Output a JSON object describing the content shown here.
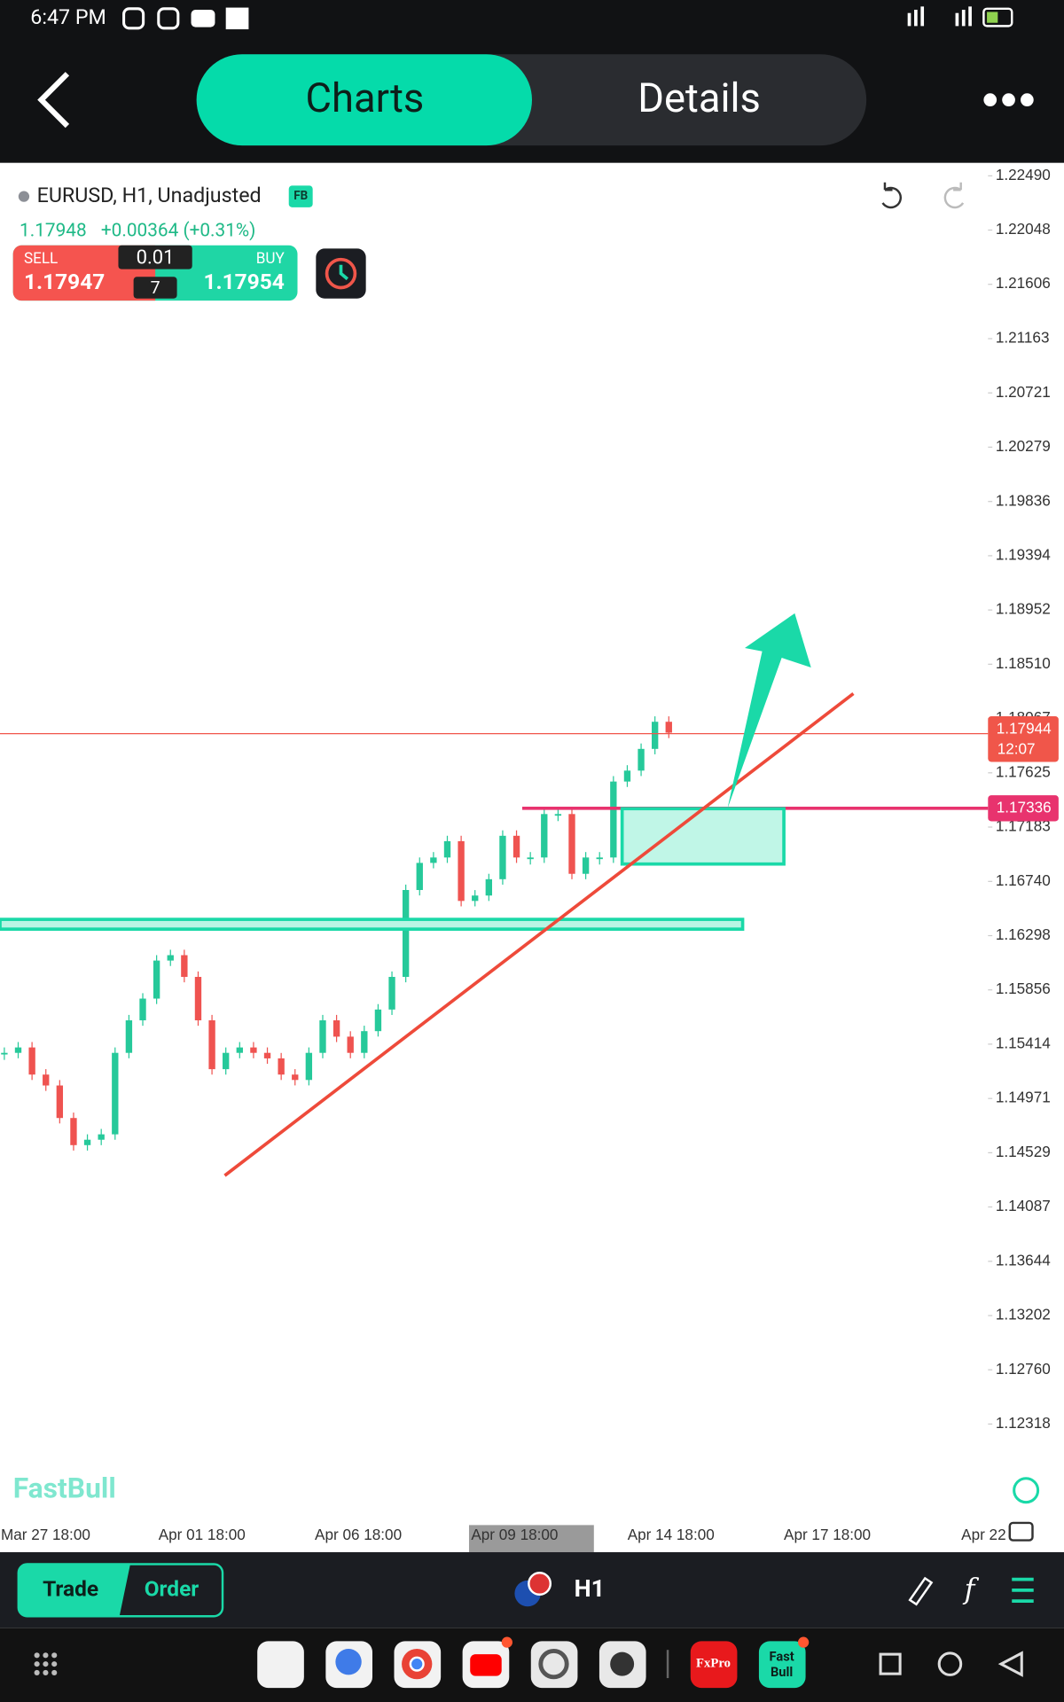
{
  "status_bar": {
    "time": "6:47 PM"
  },
  "header": {
    "tabs": [
      "Charts",
      "Details"
    ]
  },
  "instrument": {
    "name": "EURUSD, H1, Unadjusted",
    "badge": "FB",
    "last": "1.17948",
    "change": "+0.00364 (+0.31%)"
  },
  "trade_panel": {
    "sell_label": "SELL",
    "sell_price": "1.17947",
    "lot": "0.01",
    "spread": "7",
    "buy_label": "BUY",
    "buy_price": "1.17954"
  },
  "chart_data": {
    "type": "candlestick",
    "values": [
      1.15343,
      1.15387,
      1.15166,
      1.15077,
      1.14812,
      1.14591,
      1.14635,
      1.14679,
      1.15343,
      1.15608,
      1.15785,
      1.16095,
      1.16139,
      1.15962,
      1.15608,
      1.1521,
      1.15343,
      1.15387,
      1.15343,
      1.15298,
      1.15166,
      1.15122,
      1.15343,
      1.15608,
      1.15475,
      1.15343,
      1.1552,
      1.15696,
      1.15962,
      1.1667,
      1.16891,
      1.16935,
      1.17068,
      1.16581,
      1.16625,
      1.16758,
      1.17112,
      1.16935,
      1.16935,
      1.17289,
      1.17289,
      1.16802,
      1.16935,
      1.16935,
      1.17554,
      1.17643,
      1.1782,
      1.18041,
      1.17952
    ],
    "up_color": "#26c99a",
    "down_color": "#ef5350",
    "ylim": [
      1.11539,
      1.22596
    ],
    "yticks": [
      {
        "value": 1.2249,
        "label": "1.22490"
      },
      {
        "value": 1.22048,
        "label": "1.22048"
      },
      {
        "value": 1.21606,
        "label": "1.21606"
      },
      {
        "value": 1.21163,
        "label": "1.21163"
      },
      {
        "value": 1.20721,
        "label": "1.20721"
      },
      {
        "value": 1.20279,
        "label": "1.20279"
      },
      {
        "value": 1.19836,
        "label": "1.19836"
      },
      {
        "value": 1.19394,
        "label": "1.19394"
      },
      {
        "value": 1.18952,
        "label": "1.18952"
      },
      {
        "value": 1.1851,
        "label": "1.18510"
      },
      {
        "value": 1.18067,
        "label": "1.18067"
      },
      {
        "value": 1.17625,
        "label": "1.17625"
      },
      {
        "value": 1.17183,
        "label": "1.17183"
      },
      {
        "value": 1.1674,
        "label": "1.16740"
      },
      {
        "value": 1.16298,
        "label": "1.16298"
      },
      {
        "value": 1.15856,
        "label": "1.15856"
      },
      {
        "value": 1.15414,
        "label": "1.15414"
      },
      {
        "value": 1.14971,
        "label": "1.14971"
      },
      {
        "value": 1.14529,
        "label": "1.14529"
      },
      {
        "value": 1.14087,
        "label": "1.14087"
      },
      {
        "value": 1.13644,
        "label": "1.13644"
      },
      {
        "value": 1.13202,
        "label": "1.13202"
      },
      {
        "value": 1.1276,
        "label": "1.12760"
      },
      {
        "value": 1.12318,
        "label": "1.12318"
      }
    ],
    "time_labels": [
      "Mar 27 18:00",
      "Apr 01 18:00",
      "Apr 06 18:00",
      "Apr 09 18:00",
      "Apr 14 18:00",
      "Apr 17 18:00",
      "Apr 22"
    ],
    "price_lines": [
      {
        "value": 1.17944,
        "label": "1.17944",
        "timer": "12:07",
        "color": "#f0564a"
      },
      {
        "value": 1.17336,
        "label": "1.17336",
        "color": "#e8336e"
      }
    ],
    "watermark": "FastBull"
  },
  "bottom_bar": {
    "trade": "Trade",
    "order": "Order",
    "timeframe": "H1"
  },
  "dock": {
    "fxpro": "FxPro",
    "fastbull": [
      "Fast",
      "Bull"
    ]
  }
}
